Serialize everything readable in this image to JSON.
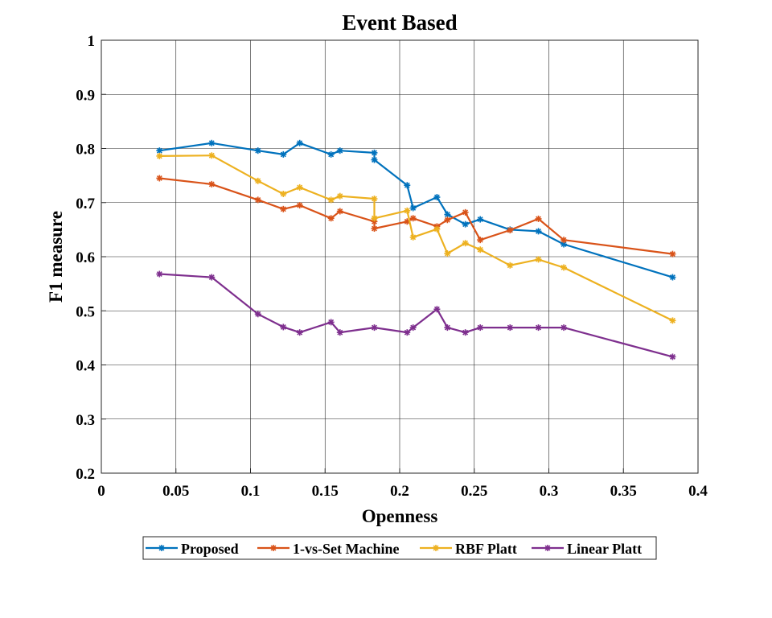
{
  "chart_data": {
    "type": "line",
    "title": "Event Based",
    "xlabel": "Openness",
    "ylabel": "F1 measure",
    "xlim": [
      0,
      0.4
    ],
    "ylim": [
      0.2,
      1
    ],
    "grid": true,
    "legend_position": "bottom-center",
    "legend_orientation": "horizontal",
    "xticks": [
      "0",
      "0.05",
      "0.1",
      "0.15",
      "0.2",
      "0.25",
      "0.3",
      "0.35",
      "0.4"
    ],
    "yticks": [
      "0.2",
      "0.3",
      "0.4",
      "0.5",
      "0.6",
      "0.7",
      "0.8",
      "0.9",
      "1"
    ],
    "series": [
      {
        "name": "Proposed",
        "color": "#0072BD",
        "x": [
          0.039,
          0.074,
          0.105,
          0.122,
          0.133,
          0.154,
          0.16,
          0.183,
          0.183,
          0.205,
          0.209,
          0.225,
          0.232,
          0.244,
          0.254,
          0.274,
          0.293,
          0.31,
          0.383
        ],
        "y": [
          0.796,
          0.81,
          0.796,
          0.789,
          0.81,
          0.789,
          0.796,
          0.792,
          0.779,
          0.732,
          0.69,
          0.71,
          0.678,
          0.66,
          0.669,
          0.65,
          0.647,
          0.623,
          0.562
        ]
      },
      {
        "name": "1-vs-Set Machine",
        "color": "#D95319",
        "x": [
          0.039,
          0.074,
          0.105,
          0.122,
          0.133,
          0.154,
          0.16,
          0.183,
          0.183,
          0.205,
          0.209,
          0.225,
          0.232,
          0.244,
          0.254,
          0.274,
          0.293,
          0.31,
          0.383
        ],
        "y": [
          0.745,
          0.734,
          0.705,
          0.688,
          0.695,
          0.671,
          0.684,
          0.665,
          0.652,
          0.665,
          0.671,
          0.656,
          0.668,
          0.682,
          0.631,
          0.649,
          0.67,
          0.631,
          0.605
        ]
      },
      {
        "name": "RBF Platt",
        "color": "#EDB120",
        "x": [
          0.039,
          0.074,
          0.105,
          0.122,
          0.133,
          0.154,
          0.16,
          0.183,
          0.183,
          0.205,
          0.209,
          0.225,
          0.232,
          0.244,
          0.254,
          0.274,
          0.293,
          0.31,
          0.383
        ],
        "y": [
          0.786,
          0.787,
          0.74,
          0.716,
          0.728,
          0.705,
          0.712,
          0.707,
          0.671,
          0.685,
          0.636,
          0.651,
          0.606,
          0.625,
          0.613,
          0.584,
          0.595,
          0.58,
          0.482
        ]
      },
      {
        "name": "Linear Platt",
        "color": "#7E2F8E",
        "x": [
          0.039,
          0.074,
          0.105,
          0.122,
          0.133,
          0.154,
          0.16,
          0.183,
          0.205,
          0.209,
          0.225,
          0.232,
          0.244,
          0.254,
          0.274,
          0.293,
          0.31,
          0.383
        ],
        "y": [
          0.568,
          0.562,
          0.494,
          0.47,
          0.46,
          0.479,
          0.46,
          0.469,
          0.46,
          0.469,
          0.503,
          0.469,
          0.46,
          0.469,
          0.469,
          0.469,
          0.469,
          0.415
        ]
      }
    ]
  }
}
